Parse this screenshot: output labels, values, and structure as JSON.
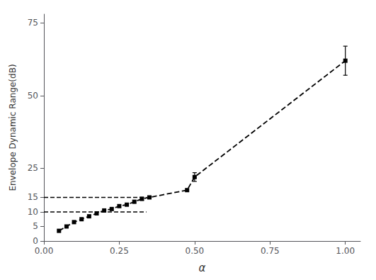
{
  "chart_data": {
    "type": "line",
    "xlabel": "α",
    "ylabel": "Envelope Dynamic Range(dB)",
    "x": [
      0.05,
      0.075,
      0.1,
      0.125,
      0.15,
      0.175,
      0.2,
      0.225,
      0.25,
      0.275,
      0.3,
      0.325,
      0.35,
      0.475,
      0.5,
      1.0
    ],
    "values": [
      3.5,
      5.0,
      6.5,
      7.5,
      8.5,
      9.5,
      10.5,
      11.0,
      12.0,
      12.5,
      13.5,
      14.5,
      15.0,
      17.5,
      22.0,
      62.0
    ],
    "error_bars": [
      0,
      0,
      0,
      0,
      0,
      0,
      0,
      0,
      0,
      0,
      0,
      0.5,
      0,
      0,
      1.5,
      5.0
    ],
    "hlines": [
      {
        "y": 10,
        "x": [
          0.0,
          0.34
        ]
      },
      {
        "y": 15,
        "x": [
          0.0,
          0.34
        ]
      }
    ],
    "xlim": [
      0.0,
      1.05
    ],
    "ylim": [
      0,
      78
    ],
    "xticks": [
      {
        "value": 0.0,
        "label": "0.00"
      },
      0.25,
      {
        "value": 0.5,
        "label": "0.50"
      },
      0.75,
      {
        "value": 1.0,
        "label": "1.00"
      }
    ],
    "yticks": [
      0,
      5,
      10,
      15,
      25,
      50,
      75
    ],
    "color": "#000000",
    "marker": "square",
    "line_style": "dashed",
    "grid": false
  }
}
